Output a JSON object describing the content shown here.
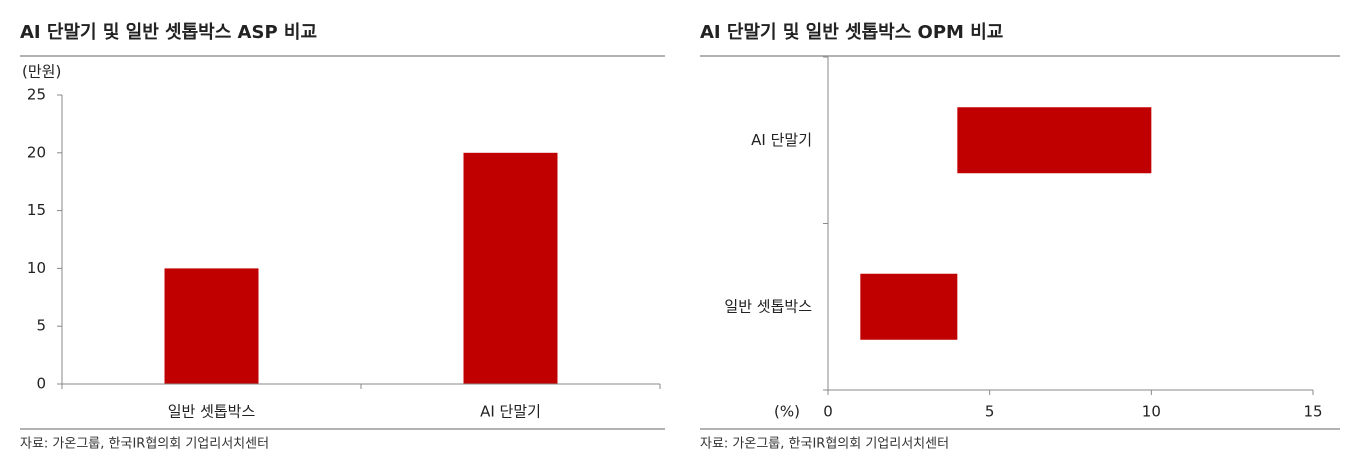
{
  "chart_data": [
    {
      "type": "bar",
      "title": "AI 단말기 및 일반 셋톱박스 ASP 비교",
      "y_unit": "(만원)",
      "categories": [
        "일반 셋톱박스",
        "AI 단말기"
      ],
      "values": [
        10,
        20
      ],
      "color": "#c00000",
      "ylim": [
        0,
        25
      ],
      "yticks": [
        0,
        5,
        10,
        15,
        20,
        25
      ],
      "source": "자료: 가온그룹, 한국IR협의회 기업리서치센터"
    },
    {
      "type": "range_bar",
      "title": "AI 단말기 및 일반 셋톱박스 OPM 비교",
      "x_unit": "(%)",
      "categories": [
        "AI 단말기",
        "일반 셋톱박스"
      ],
      "low": [
        4,
        1
      ],
      "high": [
        10,
        4
      ],
      "color": "#c00000",
      "xlim": [
        0,
        15
      ],
      "xticks": [
        0,
        5,
        10,
        15
      ],
      "source": "자료: 가온그룹, 한국IR협의회 기업리서치센터"
    }
  ]
}
